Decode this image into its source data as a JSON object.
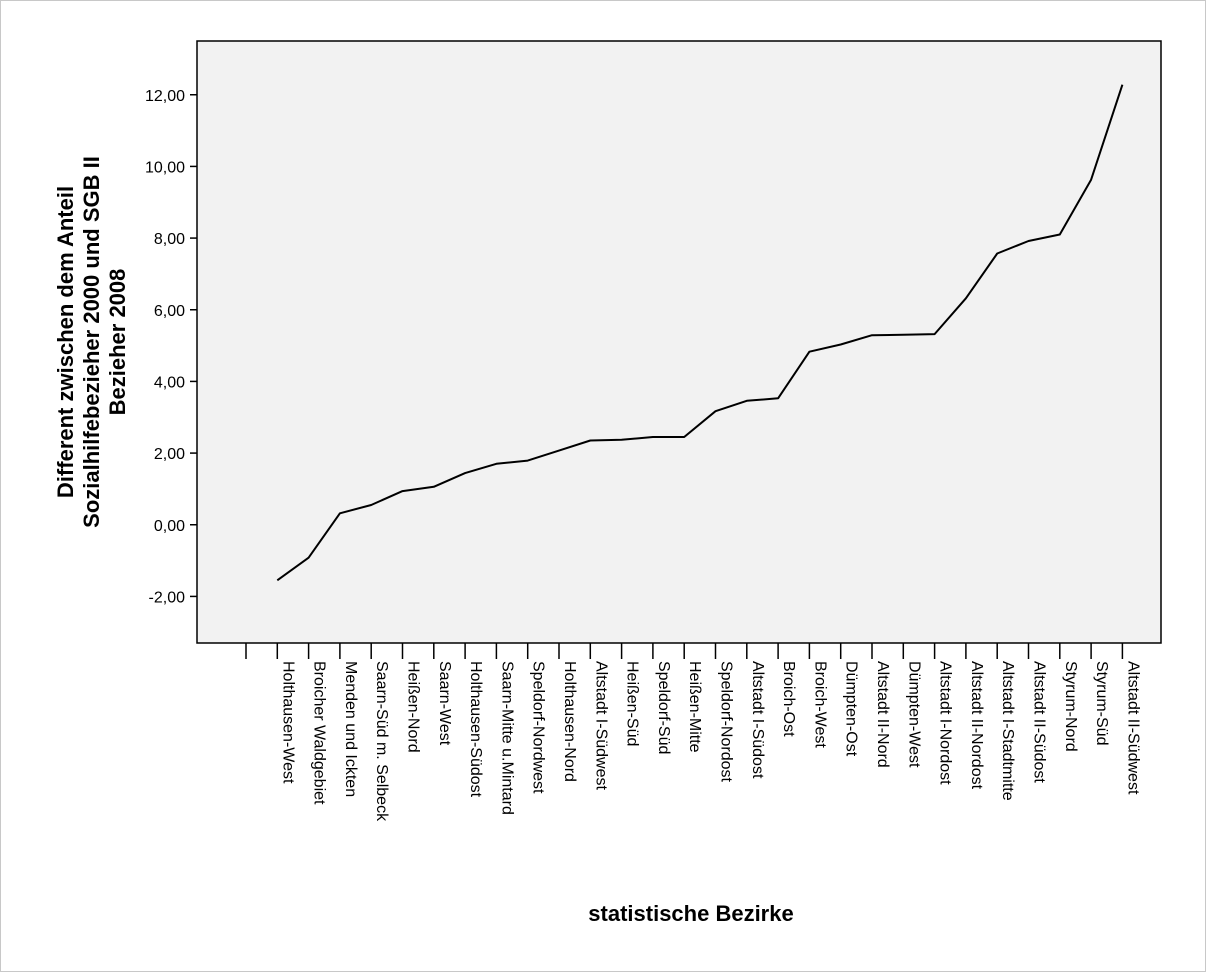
{
  "chart_data": {
    "type": "line",
    "title": "",
    "xlabel": "statistische Bezirke",
    "ylabel_lines": [
      "Different zwischen dem Anteil",
      "Sozialhilfebezieher 2000 und SGB II",
      "Bezieher 2008"
    ],
    "ylim": [
      -3.3,
      13.5
    ],
    "yticks": [
      "-2,00",
      "0,00",
      "2,00",
      "4,00",
      "6,00",
      "8,00",
      "10,00",
      "12,00"
    ],
    "ytick_values": [
      -2,
      0,
      2,
      4,
      6,
      8,
      10,
      12
    ],
    "grid": false,
    "colors": {
      "plot_background": "#f2f2f2",
      "line": "#000000",
      "axis": "#000000"
    },
    "categories": [
      "",
      "Holthausen-West",
      "Broicher Waldgebiet",
      "Menden und Ickten",
      "Saarn-Süd m. Selbeck",
      "Heißen-Nord",
      "Saarn-West",
      "Holthausen-Südost",
      "Saarn-Mitte u.Mintard",
      "Speldorf-Nordwest",
      "Holthausen-Nord",
      "Altstadt I-Südwest",
      "Heißen-Süd",
      "Speldorf-Süd",
      "Heißen-Mitte",
      "Speldorf-Nordost",
      "Altstadt I-Südost",
      "Broich-Ost",
      "Broich-West",
      "Dümpten-Ost",
      "Altstadt II-Nord",
      "Dümpten-West",
      "Altstadt I-Nordost",
      "Altstadt II-Nordost",
      "Altstadt I-Stadtmitte",
      "Altstadt II-Südost",
      "Styrum-Nord",
      "Styrum-Süd",
      "Altstadt II-Südwest"
    ],
    "values": [
      null,
      -1.55,
      -0.92,
      0.32,
      0.55,
      0.94,
      1.06,
      1.44,
      1.7,
      1.79,
      2.07,
      2.35,
      2.37,
      2.45,
      2.45,
      3.17,
      3.46,
      3.53,
      4.83,
      5.03,
      5.29,
      5.3,
      5.32,
      6.32,
      7.57,
      7.92,
      8.1,
      9.63,
      12.28
    ]
  }
}
